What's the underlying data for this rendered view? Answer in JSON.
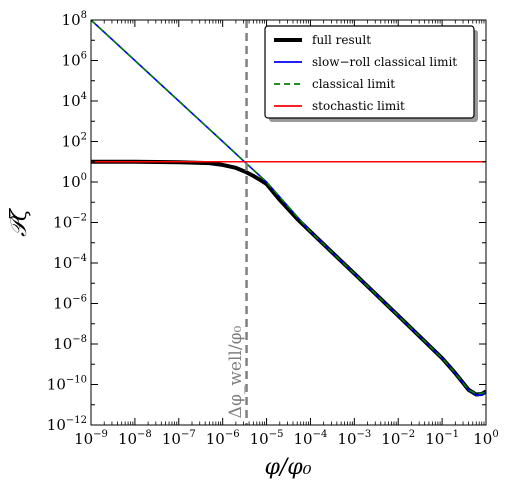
{
  "chart_data": {
    "type": "line",
    "xlabel": "φ/φ₀",
    "ylabel": "𝒫ζ",
    "xscale": "log",
    "yscale": "log",
    "xlim": [
      1e-09,
      1
    ],
    "ylim": [
      1e-12,
      100000000.0
    ],
    "grid": false,
    "legend_position": "top-right",
    "x_ticks": [
      {
        "base": "10",
        "exp": "−9"
      },
      {
        "base": "10",
        "exp": "−8"
      },
      {
        "base": "10",
        "exp": "−7"
      },
      {
        "base": "10",
        "exp": "−6"
      },
      {
        "base": "10",
        "exp": "−5"
      },
      {
        "base": "10",
        "exp": "−4"
      },
      {
        "base": "10",
        "exp": "−3"
      },
      {
        "base": "10",
        "exp": "−2"
      },
      {
        "base": "10",
        "exp": "−1"
      },
      {
        "base": "10",
        "exp": "0"
      }
    ],
    "y_ticks": [
      {
        "base": "10",
        "exp": "−12"
      },
      {
        "base": "10",
        "exp": "−10"
      },
      {
        "base": "10",
        "exp": "−8"
      },
      {
        "base": "10",
        "exp": "−6"
      },
      {
        "base": "10",
        "exp": "−4"
      },
      {
        "base": "10",
        "exp": "−2"
      },
      {
        "base": "10",
        "exp": "0"
      },
      {
        "base": "10",
        "exp": "2"
      },
      {
        "base": "10",
        "exp": "4"
      },
      {
        "base": "10",
        "exp": "6"
      },
      {
        "base": "10",
        "exp": "8"
      }
    ],
    "vertical_line": {
      "x": 3.5e-06,
      "label": "Δφ_well/φ₀",
      "color": "#808080"
    },
    "series": [
      {
        "name": "full result",
        "color": "#000000",
        "style": "solid",
        "x": [
          1e-09,
          1e-08,
          1e-07,
          5e-07,
          1e-06,
          2e-06,
          3.5e-06,
          5e-06,
          7e-06,
          1e-05,
          2e-05,
          5e-05,
          0.0001,
          0.001,
          0.01,
          0.1,
          0.2,
          0.4,
          0.6,
          0.8,
          1.0
        ],
        "y": [
          10,
          10,
          9.5,
          8.5,
          7,
          5,
          3,
          2,
          1.3,
          0.8,
          0.13,
          0.015,
          0.0035,
          3e-05,
          2.5e-07,
          2e-09,
          3.6e-10,
          5.5e-11,
          3.2e-11,
          3.4e-11,
          4.5e-11
        ]
      },
      {
        "name": "slow−roll classical limit",
        "color": "#0000ff",
        "style": "solid",
        "x": [
          1e-09,
          1e-08,
          1e-07,
          1e-06,
          3.5e-06,
          1e-05,
          0.0001,
          0.001,
          0.01,
          0.1,
          0.2,
          0.4,
          0.6,
          0.8,
          1.0
        ],
        "y": [
          100000000.0,
          1000000.0,
          10000.0,
          100,
          8,
          1.0,
          0.0035,
          3e-05,
          2.5e-07,
          2e-09,
          3.6e-10,
          5.5e-11,
          3e-11,
          3e-11,
          4.5e-11
        ]
      },
      {
        "name": "classical limit",
        "color": "#008000",
        "style": "dashed",
        "x": [
          1e-09,
          1e-08,
          1e-07,
          1e-06,
          3.5e-06,
          1e-05,
          0.0001,
          0.001,
          0.01,
          0.1,
          0.2,
          0.4,
          0.6,
          0.8,
          1.0
        ],
        "y": [
          100000000.0,
          1000000.0,
          10000.0,
          100,
          8,
          1.0,
          0.0035,
          3e-05,
          2.5e-07,
          2e-09,
          3.6e-10,
          5.5e-11,
          3.5e-11,
          3.6e-11,
          4.5e-11
        ]
      },
      {
        "name": "stochastic limit",
        "color": "#ff0000",
        "style": "solid",
        "x": [
          1e-09,
          1.0
        ],
        "y": [
          10,
          10
        ]
      }
    ]
  }
}
